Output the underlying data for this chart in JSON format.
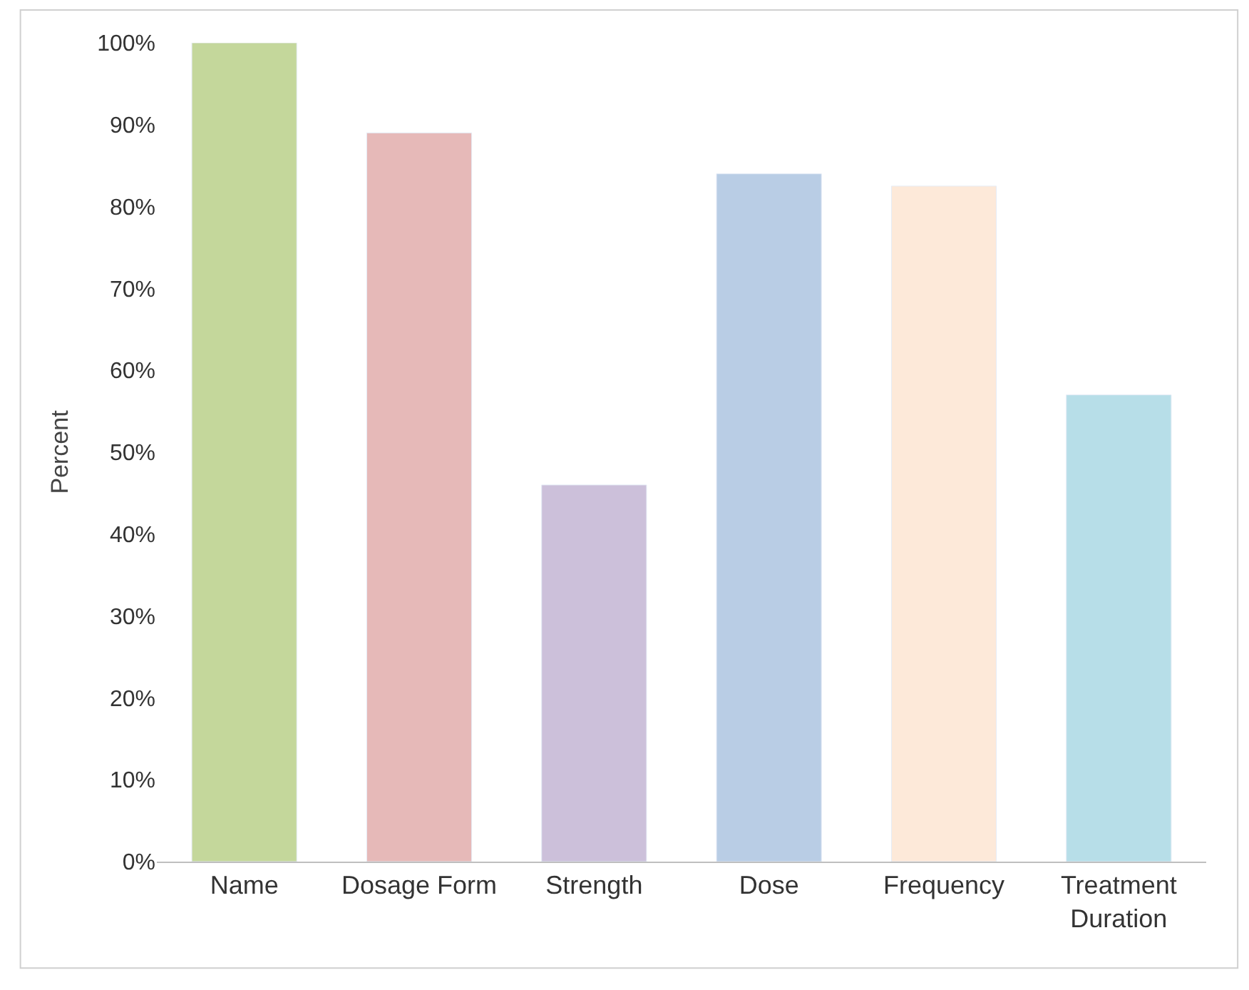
{
  "chart_data": {
    "type": "bar",
    "ylabel": "Percent",
    "categories": [
      "Name",
      "Dosage Form",
      "Strength",
      "Dose",
      "Frequency",
      "Treatment\nDuration"
    ],
    "values": [
      100,
      89,
      46,
      84,
      82.5,
      57
    ],
    "colors": [
      "#c4d79b",
      "#e6b9b8",
      "#ccc0da",
      "#b9cde5",
      "#fde9d9",
      "#b7dee8"
    ],
    "ylim": [
      0,
      100
    ],
    "yticks": [
      {
        "value": 0,
        "label": "0%"
      },
      {
        "value": 10,
        "label": "10%"
      },
      {
        "value": 20,
        "label": "20%"
      },
      {
        "value": 30,
        "label": "30%"
      },
      {
        "value": 40,
        "label": "40%"
      },
      {
        "value": 50,
        "label": "50%"
      },
      {
        "value": 60,
        "label": "60%"
      },
      {
        "value": 70,
        "label": "70%"
      },
      {
        "value": 80,
        "label": "80%"
      },
      {
        "value": 90,
        "label": "90%"
      },
      {
        "value": 100,
        "label": "100%"
      }
    ],
    "grid": false
  }
}
